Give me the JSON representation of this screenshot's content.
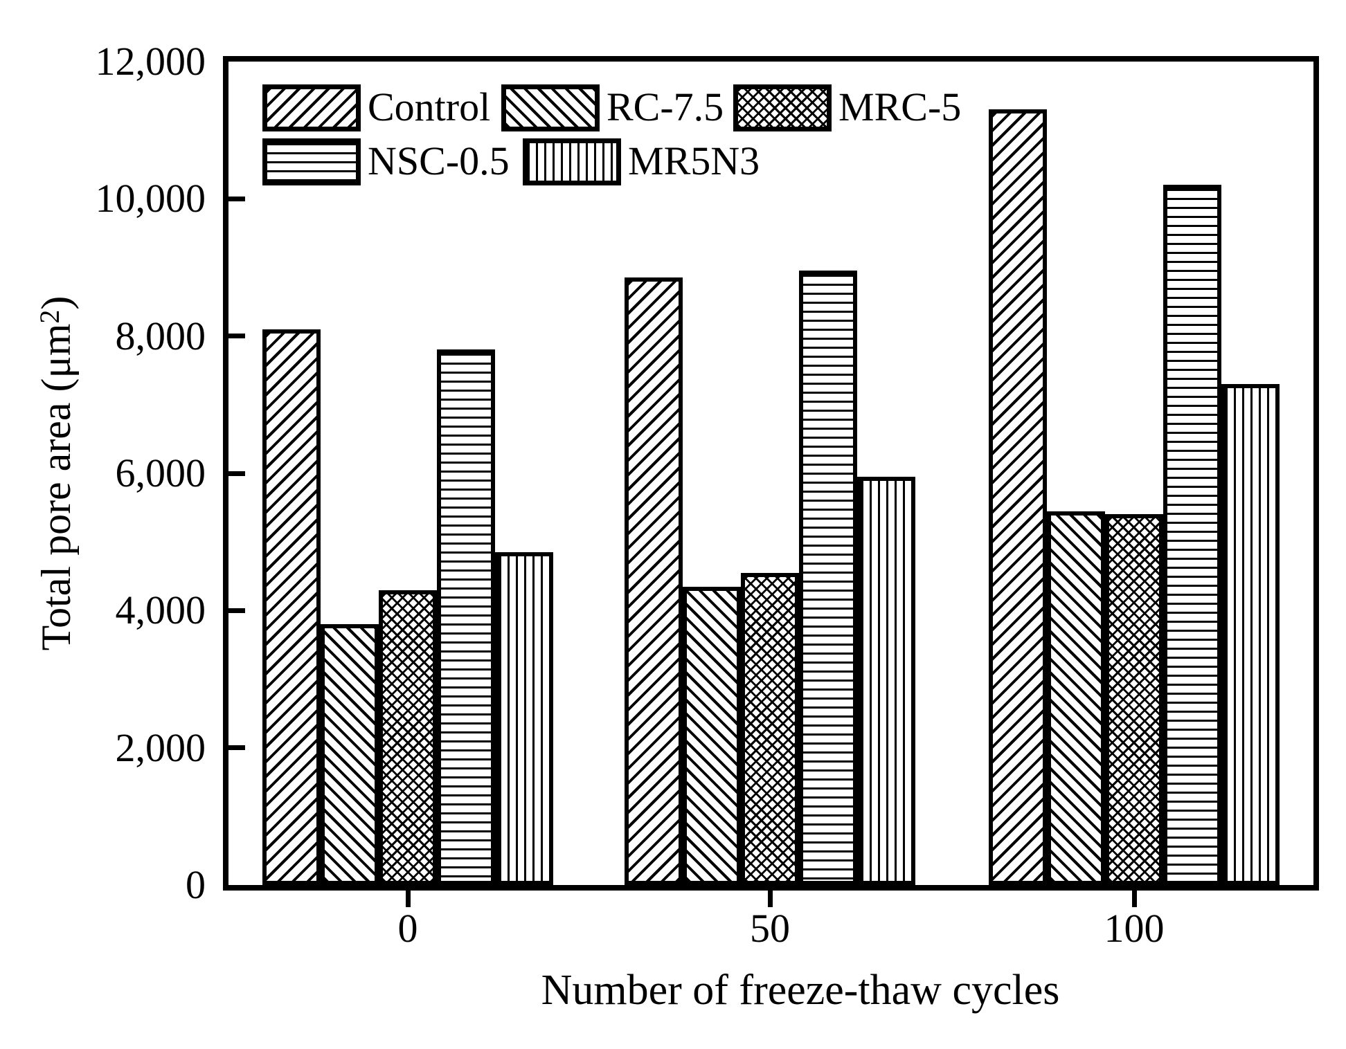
{
  "chart_data": {
    "type": "bar",
    "title": "",
    "xlabel": "Number of freeze-thaw cycles",
    "ylabel": "Total pore area (μm²)",
    "ylabel_parts": {
      "base": "Total pore area (μm",
      "sup": "2",
      "close": ")"
    },
    "categories": [
      "0",
      "50",
      "100"
    ],
    "series": [
      {
        "name": "Control",
        "pattern": "diagonal-forward",
        "values": [
          8100,
          8850,
          11300
        ]
      },
      {
        "name": "RC-7.5",
        "pattern": "diagonal-back",
        "values": [
          3800,
          4350,
          5450
        ]
      },
      {
        "name": "MRC-5",
        "pattern": "crosshatch",
        "values": [
          4300,
          4550,
          5400
        ]
      },
      {
        "name": "NSC-0.5",
        "pattern": "horizontal",
        "values": [
          7800,
          8950,
          10200
        ]
      },
      {
        "name": "MR5N3",
        "pattern": "vertical",
        "values": [
          4850,
          5950,
          7300
        ]
      }
    ],
    "ylim": [
      0,
      12000
    ],
    "yticks": [
      0,
      2000,
      4000,
      6000,
      8000,
      10000,
      12000
    ],
    "ytick_labels": [
      "0",
      "2,000",
      "4,000",
      "6,000",
      "8,000",
      "10,000",
      "12,000"
    ],
    "legend": {
      "position": "top-left",
      "rows": [
        [
          "Control",
          "RC-7.5",
          "MRC-5"
        ],
        [
          "NSC-0.5",
          "MR5N3"
        ]
      ]
    },
    "grid": false,
    "bar_fill": "#ffffff",
    "line_color": "#000000",
    "background": "#ffffff"
  }
}
